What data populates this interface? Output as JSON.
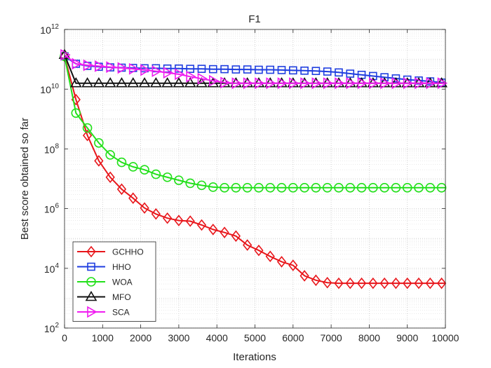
{
  "chart_data": {
    "type": "line",
    "title": "F1",
    "xlabel": "Iterations",
    "ylabel": "Best score obtained so far",
    "xlim": [
      0,
      10000
    ],
    "ylim_log10": [
      2,
      12
    ],
    "yscale": "log",
    "grid": true,
    "legend_position": "bottom-left",
    "x_ticks": [
      {
        "v": 0,
        "label": "0"
      },
      {
        "v": 1000,
        "label": "1000"
      },
      {
        "v": 2000,
        "label": "2000"
      },
      {
        "v": 3000,
        "label": "3000"
      },
      {
        "v": 4000,
        "label": "4000"
      },
      {
        "v": 5000,
        "label": "5000"
      },
      {
        "v": 6000,
        "label": "6000"
      },
      {
        "v": 7000,
        "label": "7000"
      },
      {
        "v": 8000,
        "label": "8000"
      },
      {
        "v": 9000,
        "label": "9000"
      },
      {
        "v": 10000,
        "label": "10000"
      }
    ],
    "y_ticks": [
      {
        "exp": 2,
        "base": "10",
        "sup": "2"
      },
      {
        "exp": 4,
        "base": "10",
        "sup": "4"
      },
      {
        "exp": 6,
        "base": "10",
        "sup": "6"
      },
      {
        "exp": 8,
        "base": "10",
        "sup": "8"
      },
      {
        "exp": 10,
        "base": "10",
        "sup": "10"
      },
      {
        "exp": 12,
        "base": "10",
        "sup": "12"
      }
    ],
    "x": [
      0,
      300,
      600,
      900,
      1200,
      1500,
      1800,
      2100,
      2400,
      2700,
      3000,
      3300,
      3600,
      3900,
      4200,
      4500,
      4800,
      5100,
      5400,
      5700,
      6000,
      6300,
      6600,
      6900,
      7200,
      7500,
      7800,
      8100,
      8400,
      8700,
      9000,
      9300,
      9600,
      9900,
      10000
    ],
    "series": [
      {
        "name": "GCHHO",
        "color": "#e8161b",
        "marker": "diamond",
        "log10_values": [
          11.1,
          9.65,
          8.45,
          7.6,
          7.05,
          6.65,
          6.35,
          6.02,
          5.82,
          5.68,
          5.6,
          5.58,
          5.45,
          5.3,
          5.2,
          5.08,
          4.78,
          4.6,
          4.4,
          4.22,
          4.1,
          3.75,
          3.6,
          3.52,
          3.5,
          3.5,
          3.5,
          3.5,
          3.5,
          3.5,
          3.5,
          3.5,
          3.5,
          3.5,
          3.5
        ]
      },
      {
        "name": "HHO",
        "color": "#1f3ee0",
        "marker": "square",
        "log10_values": [
          11.1,
          10.85,
          10.78,
          10.75,
          10.73,
          10.72,
          10.71,
          10.7,
          10.7,
          10.69,
          10.69,
          10.68,
          10.68,
          10.67,
          10.67,
          10.66,
          10.66,
          10.65,
          10.65,
          10.64,
          10.63,
          10.62,
          10.61,
          10.59,
          10.56,
          10.52,
          10.48,
          10.44,
          10.4,
          10.36,
          10.32,
          10.29,
          10.26,
          10.22,
          10.2
        ]
      },
      {
        "name": "WOA",
        "color": "#22e01a",
        "marker": "circle",
        "log10_values": [
          11.1,
          9.2,
          8.7,
          8.2,
          7.8,
          7.55,
          7.4,
          7.3,
          7.15,
          7.05,
          6.95,
          6.85,
          6.78,
          6.72,
          6.7,
          6.7,
          6.7,
          6.7,
          6.7,
          6.7,
          6.7,
          6.7,
          6.7,
          6.7,
          6.7,
          6.7,
          6.7,
          6.7,
          6.7,
          6.7,
          6.7,
          6.7,
          6.7,
          6.7,
          6.7
        ]
      },
      {
        "name": "MFO",
        "color": "#111111",
        "marker": "triangle-up",
        "log10_values": [
          11.15,
          10.2,
          10.2,
          10.2,
          10.2,
          10.2,
          10.2,
          10.2,
          10.2,
          10.2,
          10.2,
          10.2,
          10.2,
          10.2,
          10.2,
          10.2,
          10.2,
          10.2,
          10.2,
          10.2,
          10.2,
          10.2,
          10.2,
          10.2,
          10.2,
          10.2,
          10.2,
          10.2,
          10.2,
          10.2,
          10.2,
          10.2,
          10.2,
          10.2,
          10.2
        ]
      },
      {
        "name": "SCA",
        "color": "#f01df0",
        "marker": "triangle-right",
        "log10_values": [
          11.15,
          10.85,
          10.8,
          10.77,
          10.74,
          10.71,
          10.68,
          10.64,
          10.6,
          10.55,
          10.5,
          10.42,
          10.35,
          10.28,
          10.22,
          10.2,
          10.2,
          10.2,
          10.2,
          10.2,
          10.2,
          10.2,
          10.2,
          10.2,
          10.2,
          10.2,
          10.2,
          10.2,
          10.2,
          10.2,
          10.2,
          10.2,
          10.2,
          10.2,
          10.2
        ]
      }
    ]
  }
}
